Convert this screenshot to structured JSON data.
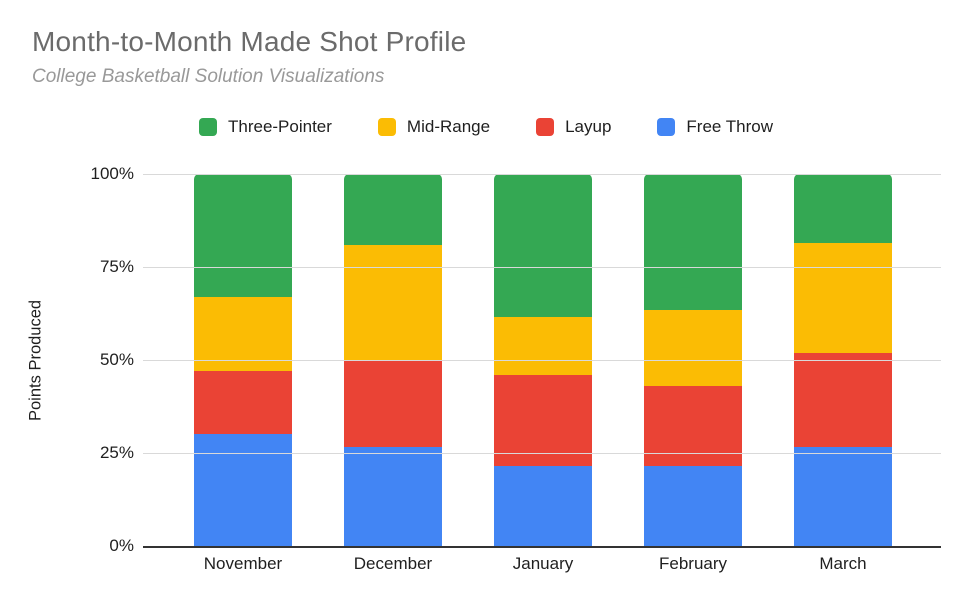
{
  "header": {
    "title": "Month-to-Month Made Shot Profile",
    "subtitle": "College Basketball Solution Visualizations"
  },
  "legend": {
    "items": [
      {
        "label": "Three-Pointer",
        "color": "#34A853"
      },
      {
        "label": "Mid-Range",
        "color": "#FBBC04"
      },
      {
        "label": "Layup",
        "color": "#EA4335"
      },
      {
        "label": "Free Throw",
        "color": "#4285F4"
      }
    ]
  },
  "chart_data": {
    "type": "bar",
    "variant": "stacked-100-percent",
    "title": "Month-to-Month Made Shot Profile",
    "subtitle": "College Basketball Solution Visualizations",
    "xlabel": "",
    "ylabel": "Points Produced",
    "ylim": [
      0,
      100
    ],
    "y_tick_labels": [
      "0%",
      "25%",
      "50%",
      "75%",
      "100%"
    ],
    "grid": "horizontal",
    "legend_position": "top",
    "categories": [
      "November",
      "December",
      "January",
      "February",
      "March"
    ],
    "series": [
      {
        "name": "Free Throw",
        "color": "#4285F4",
        "values": [
          30,
          26.5,
          21.5,
          21.5,
          26.5
        ]
      },
      {
        "name": "Layup",
        "color": "#EA4335",
        "values": [
          17,
          23.5,
          24.5,
          21.5,
          25.5
        ]
      },
      {
        "name": "Mid-Range",
        "color": "#FBBC04",
        "values": [
          20,
          31,
          15.5,
          20.5,
          29.5
        ]
      },
      {
        "name": "Three-Pointer",
        "color": "#34A853",
        "values": [
          33,
          19,
          38.5,
          36.5,
          18.5
        ]
      }
    ],
    "cumulative_boundaries_note": "segment tops per category (%): FreeThrow 30/26.5/21.5/21.5/26.5, Layup 47/50/46/43/52, MidRange 67/81/61.5/63.5/81.5, ThreePointer 100 for all"
  },
  "colors": {
    "axis_line": "#333333",
    "gridline": "#d9d9d9",
    "title_text": "#6b6b6b",
    "subtitle_text": "#999999",
    "tick_text": "#1f1f1f",
    "background": "#ffffff"
  }
}
